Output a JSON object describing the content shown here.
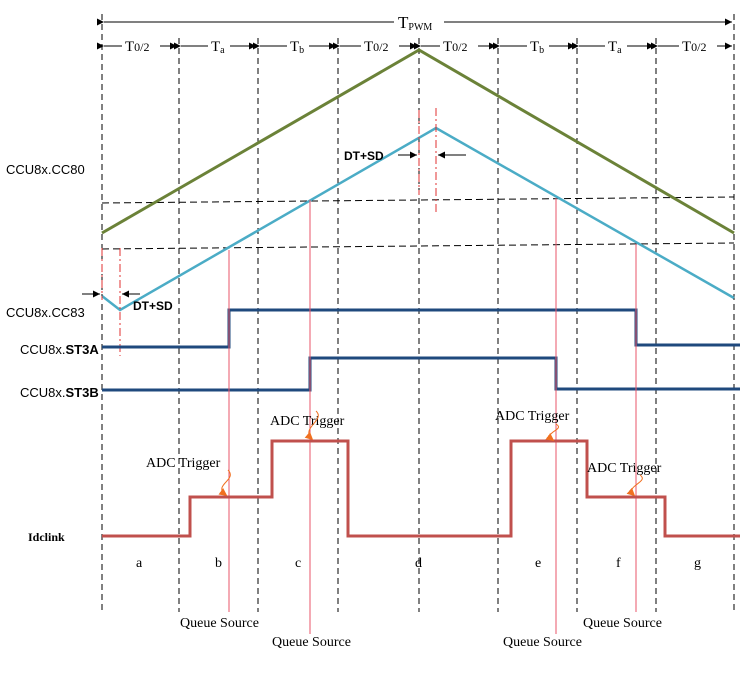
{
  "header": {
    "period_label": "T",
    "period_sub": "PWM"
  },
  "intervals": [
    {
      "label": "T",
      "sub": "0/2"
    },
    {
      "label": "T",
      "sub": "a"
    },
    {
      "label": "T",
      "sub": "b"
    },
    {
      "label": "T",
      "sub": "0/2"
    },
    {
      "label": "T",
      "sub": "0/2"
    },
    {
      "label": "T",
      "sub": "b"
    },
    {
      "label": "T",
      "sub": "a"
    },
    {
      "label": "T",
      "sub": "0/2"
    }
  ],
  "signals": {
    "cc80": "CCU8x.CC80",
    "cc83": "CCU8x.CC83",
    "st3a_prefix": "CCU8x.",
    "st3a_suffix": "ST3A",
    "st3b_prefix": "CCU8x.",
    "st3b_suffix": "ST3B",
    "idclink": "Idclink"
  },
  "annotations": {
    "dt_sd_top": "DT+SD",
    "dt_sd_left": "DT+SD",
    "adc_trigger": "ADC Trigger",
    "queue_source": "Queue Source"
  },
  "segments": [
    "a",
    "b",
    "c",
    "d",
    "e",
    "f",
    "g"
  ],
  "colors": {
    "cc80_line": "#6b8238",
    "cc83_line": "#4bacc6",
    "pwm_line": "#1f497d",
    "idclink_line": "#c0504d",
    "trigger_line": "#e8566a",
    "arrow_orange": "#f07020"
  }
}
